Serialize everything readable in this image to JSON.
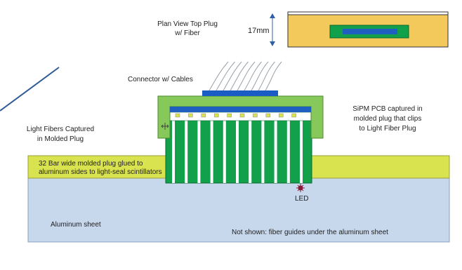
{
  "labels": {
    "plan_view_line1": "Plan View Top Plug",
    "plan_view_line2": "w/ Fiber",
    "dimension": "17mm",
    "connector": "Connector w/ Cables",
    "sipm_line1": "SiPM PCB captured in",
    "sipm_line2": "molded plug that clips",
    "sipm_line3": "to Light Fiber Plug",
    "fibers_line1": "Light Fibers Captured",
    "fibers_line2": "in Molded Plug",
    "bar_line1": "32 Bar wide molded plug glued to",
    "bar_line2": "aluminum sides to light-seal scintillators",
    "led": "LED",
    "aluminum": "Aluminum sheet",
    "not_shown": "Not shown: fiber guides under the aluminum sheet"
  },
  "colors": {
    "plug_green": "#12a04a",
    "pcb_blue": "#1f5fbf",
    "connector_blue": "#1a5bc4",
    "top_plug_fill": "#86c95a",
    "olive_band": "#d9e24f",
    "aluminum_fill": "#c7d7ec",
    "plan_outer": "#f3c95b",
    "led": "#8a1a3a",
    "arrow": "#2f5fa6",
    "pointer": "#2e5a96"
  },
  "icons": {
    "cursor": "move-cursor-icon"
  }
}
